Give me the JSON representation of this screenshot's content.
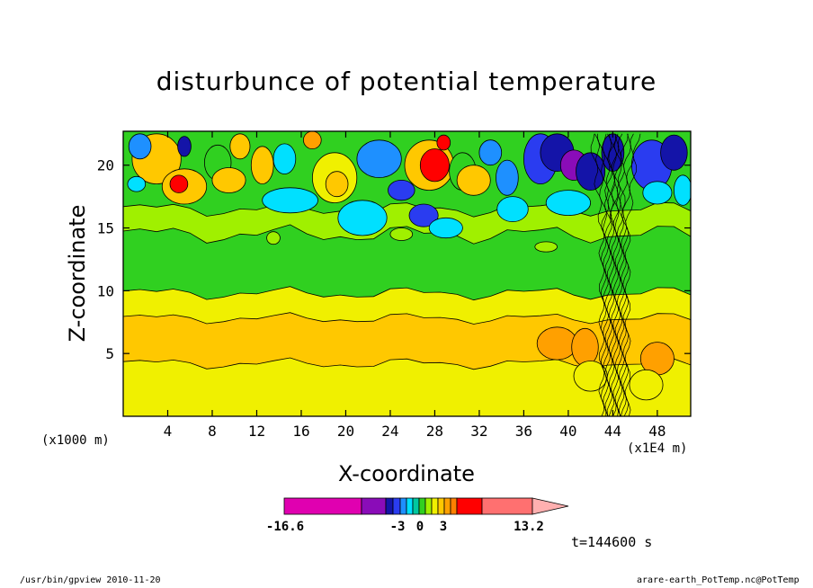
{
  "chart_data": {
    "type": "heatmap",
    "title": "disturbunce of potential temperature",
    "xlabel": "X-coordinate",
    "ylabel": "Z-coordinate",
    "x_unit_left": "(x1000 m)",
    "x_unit_right": "(x1E4 m)",
    "xlim": [
      0,
      51
    ],
    "ylim": [
      0,
      22.7
    ],
    "xticks": [
      4,
      8,
      12,
      16,
      20,
      24,
      28,
      32,
      36,
      40,
      44,
      48
    ],
    "yticks": [
      5,
      10,
      15,
      20
    ],
    "colorbar": {
      "min_label": "-16.6",
      "max_label": "13.2",
      "labels": [
        "-16.6",
        "-3",
        "0",
        "3",
        "13.2"
      ],
      "colors": [
        "#e000b0",
        "#8a0cb8",
        "#1414a8",
        "#2a3cf0",
        "#1e90ff",
        "#00e0ff",
        "#00c8a0",
        "#30d020",
        "#a0f000",
        "#f0f000",
        "#ffc800",
        "#ffa000",
        "#ff8000",
        "#ff0000",
        "#ff7070",
        "#ffb0b0"
      ]
    },
    "time_label": "t=144600 s"
  },
  "footer": {
    "left": "/usr/bin/gpview  2010-11-20",
    "right": "arare-earth_PotTemp.nc@PotTemp"
  }
}
